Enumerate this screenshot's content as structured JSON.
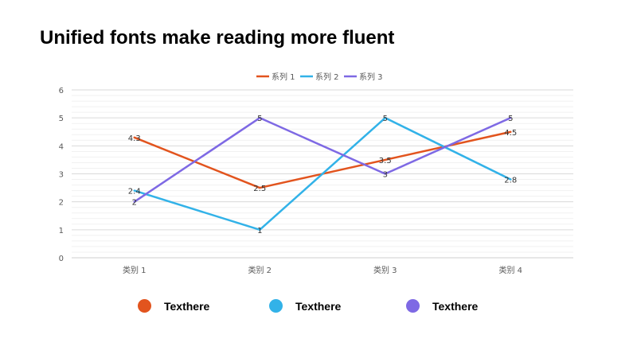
{
  "title": "Unified fonts make reading more fluent",
  "chart_data": {
    "type": "line",
    "title": "",
    "xlabel": "",
    "ylabel": "",
    "categories": [
      "类别 1",
      "类别 2",
      "类别 3",
      "类别 4"
    ],
    "ylim": [
      0,
      6
    ],
    "yticks": [
      "0",
      "1",
      "2",
      "3",
      "4",
      "5",
      "6"
    ],
    "grid": true,
    "legend_position": "top",
    "series": [
      {
        "name": "系列 1",
        "color": "#E2541E",
        "values": [
          4.3,
          2.5,
          3.5,
          4.5
        ],
        "labels": [
          "4.3",
          "2.5",
          "3.5",
          "4.5"
        ]
      },
      {
        "name": "系列 2",
        "color": "#32B2E8",
        "values": [
          2.4,
          1,
          5,
          2.8
        ],
        "labels": [
          "2.4",
          "1",
          "5",
          "2.8"
        ]
      },
      {
        "name": "系列 3",
        "color": "#7E69E4",
        "values": [
          2,
          5,
          3,
          5
        ],
        "labels": [
          "2",
          "5",
          "3",
          "5"
        ]
      }
    ]
  },
  "bottom_legend": [
    {
      "label": "Texthere",
      "color": "#E2541E"
    },
    {
      "label": "Texthere",
      "color": "#32B2E8"
    },
    {
      "label": "Texthere",
      "color": "#7E69E4"
    }
  ]
}
